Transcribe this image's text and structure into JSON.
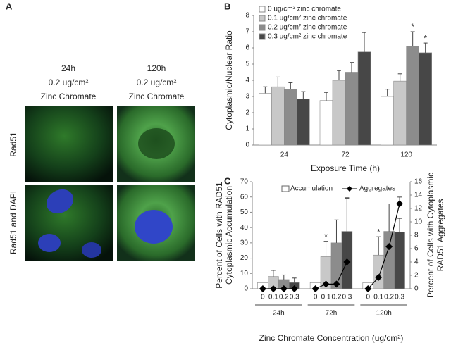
{
  "panel_a": {
    "label": "A",
    "columns": [
      {
        "time": "24h",
        "dose": "0.2 ug/cm²",
        "agent": "Zinc Chromate"
      },
      {
        "time": "120h",
        "dose": "0.2 ug/cm²",
        "agent": "Zinc Chromate"
      }
    ],
    "rows": [
      "Rad51",
      "Rad51 and DAPI"
    ]
  },
  "chart_data": [
    {
      "type": "bar",
      "panel_label": "B",
      "ylabel": "Cytoplasmic/Nuclear Ratio",
      "xlabel": "Exposure Time (h)",
      "categories": [
        "24",
        "72",
        "120"
      ],
      "ylim": [
        0,
        8
      ],
      "yticks": [
        0,
        1,
        2,
        3,
        4,
        5,
        6,
        7,
        8
      ],
      "legend": "top-left",
      "series": [
        {
          "name": "0 ug/cm² zinc chromate",
          "color": "#ffffff",
          "values": [
            3.2,
            2.75,
            3.0
          ],
          "errors": [
            0.4,
            0.5,
            0.45
          ],
          "significance": [
            null,
            null,
            null
          ]
        },
        {
          "name": "0.1 ug/cm² zinc chromate",
          "color": "#c8c8c8",
          "values": [
            3.6,
            4.0,
            3.95
          ],
          "errors": [
            0.6,
            0.6,
            0.45
          ],
          "significance": [
            null,
            null,
            null
          ]
        },
        {
          "name": "0.2 ug/cm² zinc chromate",
          "color": "#8c8c8c",
          "values": [
            3.45,
            4.5,
            6.1
          ],
          "errors": [
            0.4,
            0.6,
            0.9
          ],
          "significance": [
            null,
            null,
            "*"
          ]
        },
        {
          "name": "0.3 ug/cm² zinc chromate",
          "color": "#474747",
          "values": [
            2.85,
            5.75,
            5.7
          ],
          "errors": [
            0.45,
            1.2,
            0.6
          ],
          "significance": [
            null,
            null,
            "*"
          ]
        }
      ]
    },
    {
      "type": "bar-line",
      "panel_label": "C",
      "ylabel": [
        "Percent of Cells with RAD51",
        "Cytoplasmic Accumulation"
      ],
      "y2label": [
        "Percent of Cells with Cytoplasmic",
        "RAD51 Aggregates"
      ],
      "xlabel": "Zinc Chromate Concentration (ug/cm²)",
      "categories": [
        "0",
        "0.1",
        "0.2",
        "0.3",
        "0",
        "0.1",
        "0.2",
        "0.3",
        "0",
        "0.1",
        "0.2",
        "0.3"
      ],
      "groups": [
        "24h",
        "72h",
        "120h"
      ],
      "ylim": [
        0,
        70
      ],
      "yticks": [
        0,
        10,
        20,
        30,
        40,
        50,
        60,
        70
      ],
      "y2lim": [
        0,
        16
      ],
      "y2ticks": [
        0,
        2,
        4,
        6,
        8,
        10,
        12,
        14,
        16
      ],
      "series": [
        {
          "name": "Accumulation",
          "color": "#ffffff",
          "colors": [
            "#ffffff",
            "#c8c8c8",
            "#8c8c8c",
            "#474747",
            "#ffffff",
            "#c8c8c8",
            "#8c8c8c",
            "#474747",
            "#ffffff",
            "#c8c8c8",
            "#8c8c8c",
            "#474747"
          ],
          "values": [
            4,
            8,
            6,
            4,
            4,
            21,
            30,
            37.5,
            4,
            22,
            37.5,
            37
          ],
          "errors": [
            null,
            4,
            3,
            3,
            null,
            10,
            15,
            22,
            null,
            12,
            18,
            9
          ],
          "significance": [
            null,
            null,
            null,
            null,
            null,
            "*",
            null,
            null,
            null,
            "*",
            null,
            null
          ]
        },
        {
          "name": "Aggregates",
          "color": "#000000",
          "axis": "y2",
          "values": [
            0,
            0,
            0,
            0,
            0,
            0.7,
            0.7,
            4,
            0,
            1.7,
            6.3,
            12.7
          ],
          "errors": [
            null,
            null,
            null,
            null,
            null,
            null,
            null,
            9.5,
            null,
            null,
            null,
            1
          ]
        }
      ]
    }
  ]
}
